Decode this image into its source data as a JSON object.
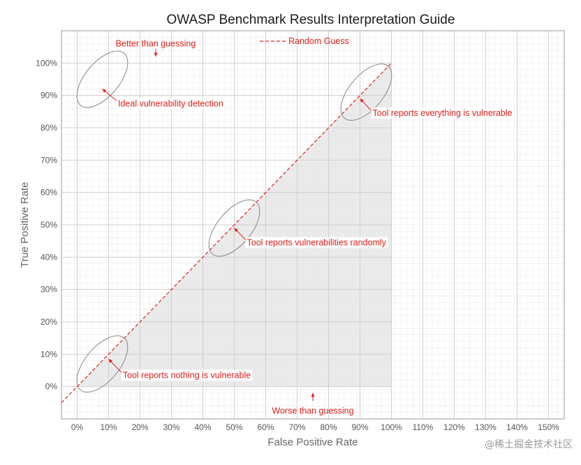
{
  "chart_data": {
    "type": "line",
    "title": "OWASP Benchmark Results Interpretation Guide",
    "xlabel": "False Positive Rate",
    "ylabel": "True Positive Rate",
    "xlim": [
      -5,
      155
    ],
    "ylim": [
      -10,
      110
    ],
    "x_ticks": [
      "0%",
      "10%",
      "20%",
      "30%",
      "40%",
      "50%",
      "60%",
      "70%",
      "80%",
      "90%",
      "100%",
      "110%",
      "120%",
      "130%",
      "140%",
      "150%"
    ],
    "x_tick_values": [
      0,
      10,
      20,
      30,
      40,
      50,
      60,
      70,
      80,
      90,
      100,
      110,
      120,
      130,
      140,
      150
    ],
    "y_ticks": [
      "0%",
      "10%",
      "20%",
      "30%",
      "40%",
      "50%",
      "60%",
      "70%",
      "80%",
      "90%",
      "100%"
    ],
    "y_tick_values": [
      0,
      10,
      20,
      30,
      40,
      50,
      60,
      70,
      80,
      90,
      100
    ],
    "grid": true,
    "legend_position": "top-center",
    "series": [
      {
        "name": "Random Guess",
        "x": [
          -5,
          100
        ],
        "y": [
          -5,
          100
        ],
        "style": "dashed",
        "color": "#e0201a"
      }
    ],
    "shaded_region": {
      "polygon_x": [
        0,
        100,
        100,
        0
      ],
      "polygon_y": [
        0,
        100,
        0,
        0
      ],
      "color": "#e8e8e8"
    },
    "ellipses": [
      {
        "cx": 8,
        "cy": 95,
        "rx": 12,
        "ry": 6,
        "angle": -50
      },
      {
        "cx": 92,
        "cy": 91,
        "rx": 12,
        "ry": 6,
        "angle": -50
      },
      {
        "cx": 50,
        "cy": 49,
        "rx": 12,
        "ry": 6,
        "angle": -50
      },
      {
        "cx": 8,
        "cy": 7,
        "rx": 12,
        "ry": 6,
        "angle": -50
      }
    ],
    "annotations": [
      {
        "text": "Better than guessing",
        "x": 25,
        "y": 106,
        "arrow_to": [
          25,
          102
        ]
      },
      {
        "text": "Ideal vulnerability detection",
        "x": 13,
        "y": 87.5,
        "arrow_to": [
          8,
          92
        ]
      },
      {
        "text": "Tool reports everything is vulnerable",
        "x": 94,
        "y": 84.5,
        "arrow_to": [
          90,
          89
        ]
      },
      {
        "text": "Tool reports vulnerabilities randomly",
        "x": 54,
        "y": 44.5,
        "arrow_to": [
          50,
          49
        ]
      },
      {
        "text": "Tool reports nothing is vulnerable",
        "x": 14.5,
        "y": 3.5,
        "arrow_to": [
          10,
          8.5
        ]
      },
      {
        "text": "Worse than guessing",
        "x": 75,
        "y": -7.5,
        "arrow_to": [
          75,
          -2
        ]
      }
    ]
  },
  "watermark": "@稀土掘金技术社区",
  "colors": {
    "accent": "#e0201a",
    "shade": "#e8e8e8",
    "grid_major": "#d0d0d0",
    "grid_minor": "#ececec"
  }
}
